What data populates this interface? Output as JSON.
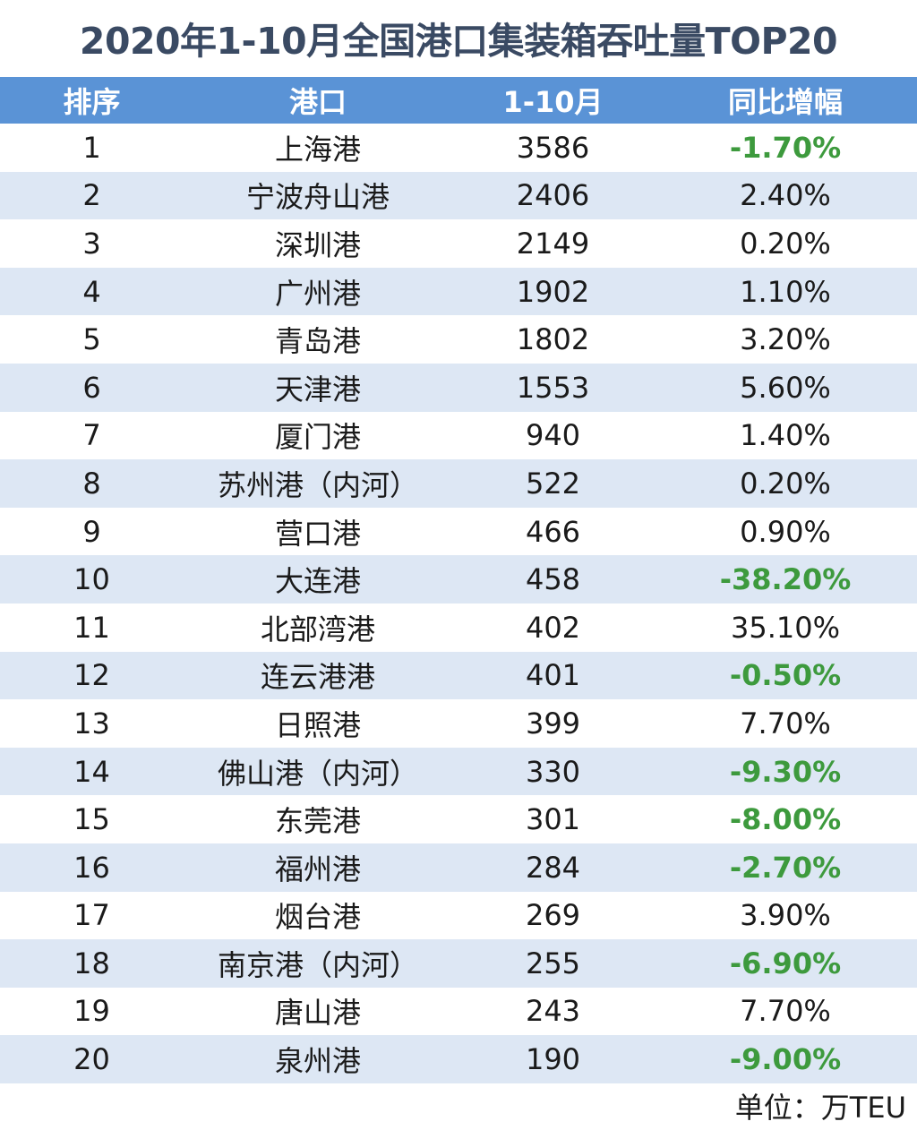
{
  "title": "2020年1-10月全国港口集装箱吞吐量TOP20",
  "unit": "单位：万TEU",
  "colors": {
    "header_bg": "#5a93d6",
    "stripe_bg": "#dde7f4",
    "negative": "#3d9a3d",
    "title": "#3a4a63"
  },
  "chart_data": {
    "type": "table",
    "title": "2020年1-10月全国港口集装箱吞吐量TOP20",
    "columns": [
      "排序",
      "港口",
      "1-10月",
      "同比增幅"
    ],
    "rows": [
      [
        "1",
        "上海港",
        "3586",
        "-1.70%"
      ],
      [
        "2",
        "宁波舟山港",
        "2406",
        "2.40%"
      ],
      [
        "3",
        "深圳港",
        "2149",
        "0.20%"
      ],
      [
        "4",
        "广州港",
        "1902",
        "1.10%"
      ],
      [
        "5",
        "青岛港",
        "1802",
        "3.20%"
      ],
      [
        "6",
        "天津港",
        "1553",
        "5.60%"
      ],
      [
        "7",
        "厦门港",
        "940",
        "1.40%"
      ],
      [
        "8",
        "苏州港（内河）",
        "522",
        "0.20%"
      ],
      [
        "9",
        "营口港",
        "466",
        "0.90%"
      ],
      [
        "10",
        "大连港",
        "458",
        "-38.20%"
      ],
      [
        "11",
        "北部湾港",
        "402",
        "35.10%"
      ],
      [
        "12",
        "连云港港",
        "401",
        "-0.50%"
      ],
      [
        "13",
        "日照港",
        "399",
        "7.70%"
      ],
      [
        "14",
        "佛山港（内河）",
        "330",
        "-9.30%"
      ],
      [
        "15",
        "东莞港",
        "301",
        "-8.00%"
      ],
      [
        "16",
        "福州港",
        "284",
        "-2.70%"
      ],
      [
        "17",
        "烟台港",
        "269",
        "3.90%"
      ],
      [
        "18",
        "南京港（内河）",
        "255",
        "-6.90%"
      ],
      [
        "19",
        "唐山港",
        "243",
        "7.70%"
      ],
      [
        "20",
        "泉州港",
        "190",
        "-9.00%"
      ]
    ]
  }
}
